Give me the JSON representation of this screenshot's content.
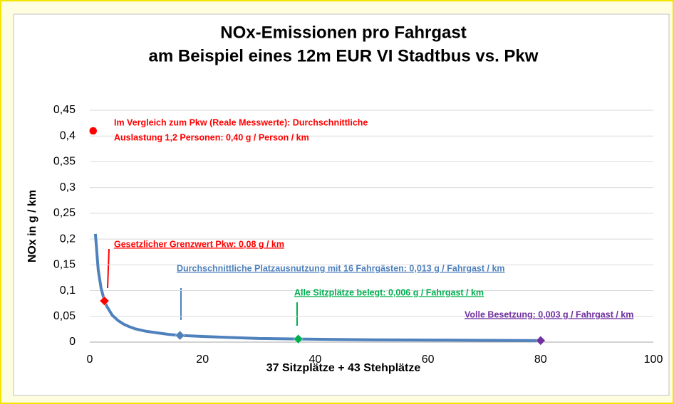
{
  "chart_data": {
    "type": "line",
    "title": [
      "NOx-Emissionen pro Fahrgast",
      "am Beispiel eines 12m EUR VI Stadtbus vs. Pkw"
    ],
    "x_label": "37 Sitzplätze + 43 Stehplätze",
    "y_label": "NOx in g / km",
    "xlim": [
      0,
      100
    ],
    "xticks": [
      0,
      20,
      40,
      60,
      80,
      100
    ],
    "ylim": [
      0,
      0.45
    ],
    "yticks": [
      0,
      {
        "value": 0.05,
        "label": "0,05"
      },
      {
        "value": 0.1,
        "label": "0,1"
      },
      {
        "value": 0.15,
        "label": "0,15"
      },
      {
        "value": 0.2,
        "label": "0,2"
      },
      {
        "value": 0.25,
        "label": "0,25"
      },
      {
        "value": 0.3,
        "label": "0,3"
      },
      {
        "value": 0.35,
        "label": "0,35"
      },
      {
        "value": 0.4,
        "label": "0,4"
      },
      {
        "value": 0.45,
        "label": "0,45"
      }
    ],
    "grid": true,
    "color": "#4f81bd",
    "x": [
      1,
      1.5,
      2,
      2.6,
      3,
      4,
      5,
      6,
      7,
      8,
      10,
      12,
      14,
      16,
      20,
      25,
      30,
      37,
      45,
      50,
      60,
      70,
      80
    ],
    "values": [
      0.21,
      0.14,
      0.105,
      0.08,
      0.07,
      0.052,
      0.042,
      0.035,
      0.03,
      0.026,
      0.021,
      0.018,
      0.015,
      0.013,
      0.011,
      0.009,
      0.007,
      0.006,
      0.005,
      0.0045,
      0.004,
      0.0035,
      0.003
    ],
    "points": [
      {
        "x": 0.6,
        "value": 0.41,
        "color": "#ff0000",
        "shape": "circle"
      },
      {
        "x": 2.6,
        "value": 0.08,
        "color": "#ff0000",
        "shape": "diamond"
      },
      {
        "x": 16,
        "value": 0.013,
        "color": "#4f81bd",
        "shape": "diamond"
      },
      {
        "x": 37,
        "value": 0.006,
        "color": "#00b050",
        "shape": "diamond"
      },
      {
        "x": 80,
        "value": 0.003,
        "color": "#7030a0",
        "shape": "diamond"
      }
    ],
    "annotations": [
      {
        "text": [
          "Im Vergleich zum Pkw (Reale Messwerte): Durchschnittliche",
          "Auslastung 1,2 Personen: 0,40 g / Person / km"
        ],
        "color": "#ff0000",
        "underline": false
      },
      {
        "text": [
          "Gesetzlicher Grenzwert Pkw: 0,08 g / km"
        ],
        "color": "#ff0000",
        "underline": true
      },
      {
        "text": [
          "Durchschnittliche Platzausnutzung mit 16 Fahrgästen: 0,013 g / Fahrgast / km"
        ],
        "color": "#4f81bd",
        "underline": true
      },
      {
        "text": [
          "Alle Sitzplätze belegt: 0,006 g / Fahrgast / km"
        ],
        "color": "#00b050",
        "underline": true
      },
      {
        "text": [
          "Volle Besetzung: 0,003 g / Fahrgast / km"
        ],
        "color": "#7030a0",
        "underline": true
      }
    ]
  }
}
